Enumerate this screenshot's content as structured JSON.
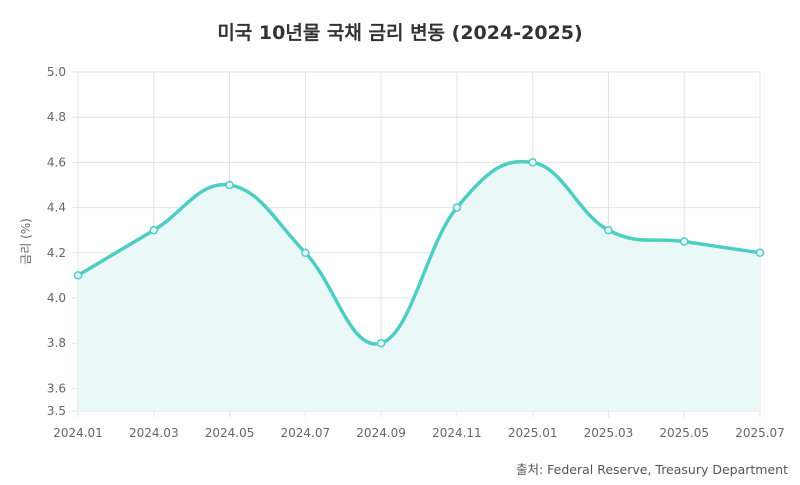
{
  "chart_data": {
    "type": "line",
    "title": "미국 10년물 국채 금리 변동 (2024-2025)",
    "xlabel": "",
    "ylabel": "금리 (%)",
    "categories": [
      "2024.01",
      "2024.03",
      "2024.05",
      "2024.07",
      "2024.09",
      "2024.11",
      "2025.01",
      "2025.03",
      "2025.05",
      "2025.07"
    ],
    "values": [
      4.1,
      4.3,
      4.5,
      4.2,
      3.8,
      4.4,
      4.6,
      4.3,
      4.25,
      4.2
    ],
    "ylim": [
      3.5,
      5.0
    ],
    "yticks": [
      "3.5",
      "3.6",
      "3.8",
      "4.0",
      "4.2",
      "4.4",
      "4.6",
      "4.8",
      "5.0"
    ],
    "grid": true,
    "fill": true,
    "line_color": "#4ecdc4",
    "fill_color": "#eaf8f8",
    "source": "출처: Federal Reserve, Treasury Department"
  }
}
